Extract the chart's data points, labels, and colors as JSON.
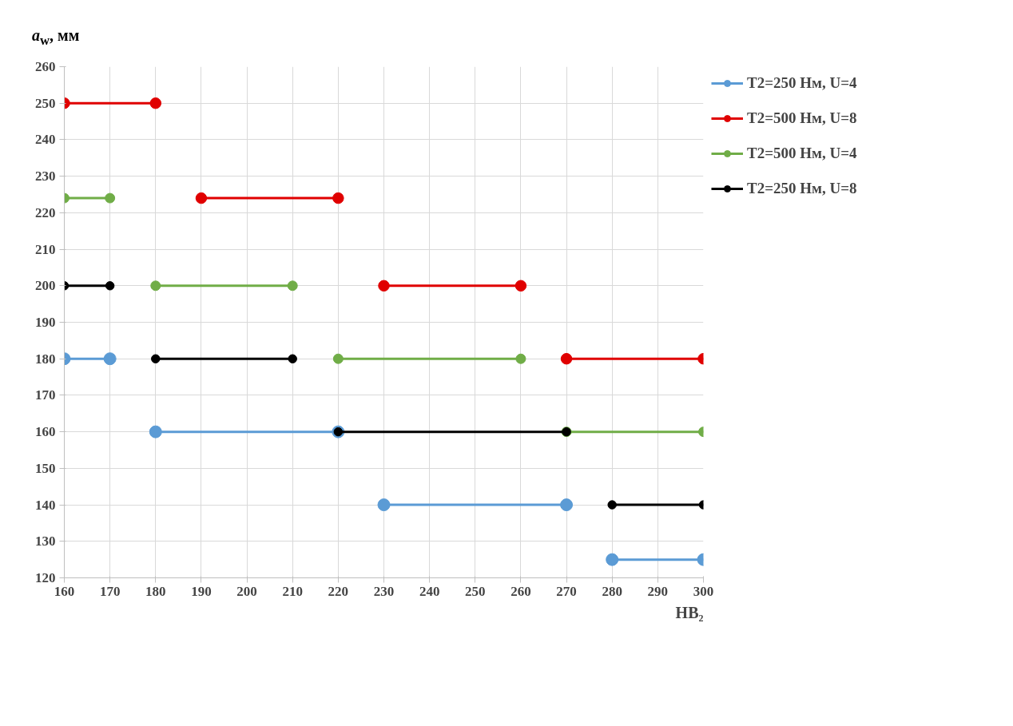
{
  "chart_data": {
    "type": "line",
    "xlabel": "HB₂",
    "ylabel": "a$_{w}$, мм",
    "xlim": [
      160,
      300
    ],
    "xticks": [
      160,
      170,
      180,
      190,
      200,
      210,
      220,
      230,
      240,
      250,
      260,
      270,
      280,
      290,
      300
    ],
    "ylim": [
      120,
      260
    ],
    "yticks": [
      120,
      130,
      140,
      150,
      160,
      170,
      180,
      190,
      200,
      210,
      220,
      230,
      240,
      250,
      260
    ],
    "grid": true,
    "legend": "right",
    "marker": "circle",
    "line_style": "solid",
    "series": [
      {
        "name": "T2=250 Нм, U=4",
        "color": "#5b9bd5",
        "x": [
          160,
          170,
          null,
          180,
          220,
          null,
          230,
          270,
          null,
          280,
          300
        ],
        "values": [
          180,
          180,
          null,
          160,
          160,
          null,
          140,
          140,
          null,
          125,
          125
        ]
      },
      {
        "name": "T2=500 Нм, U=8",
        "color": "#e00000",
        "x": [
          160,
          180,
          null,
          190,
          220,
          null,
          230,
          260,
          null,
          270,
          300
        ],
        "values": [
          250,
          250,
          null,
          224,
          224,
          null,
          200,
          200,
          null,
          180,
          180
        ]
      },
      {
        "name": "T2=500 Нм, U=4",
        "color": "#70ad47",
        "x": [
          160,
          170,
          null,
          180,
          210,
          null,
          220,
          260,
          null,
          270,
          300
        ],
        "values": [
          224,
          224,
          null,
          200,
          200,
          null,
          180,
          180,
          null,
          160,
          160
        ]
      },
      {
        "name": "T2=250 Нм, U=8",
        "color": "#000000",
        "x": [
          160,
          170,
          null,
          180,
          210,
          null,
          220,
          270,
          null,
          280,
          300
        ],
        "values": [
          200,
          200,
          null,
          180,
          180,
          null,
          160,
          160,
          null,
          140,
          140
        ]
      }
    ]
  }
}
